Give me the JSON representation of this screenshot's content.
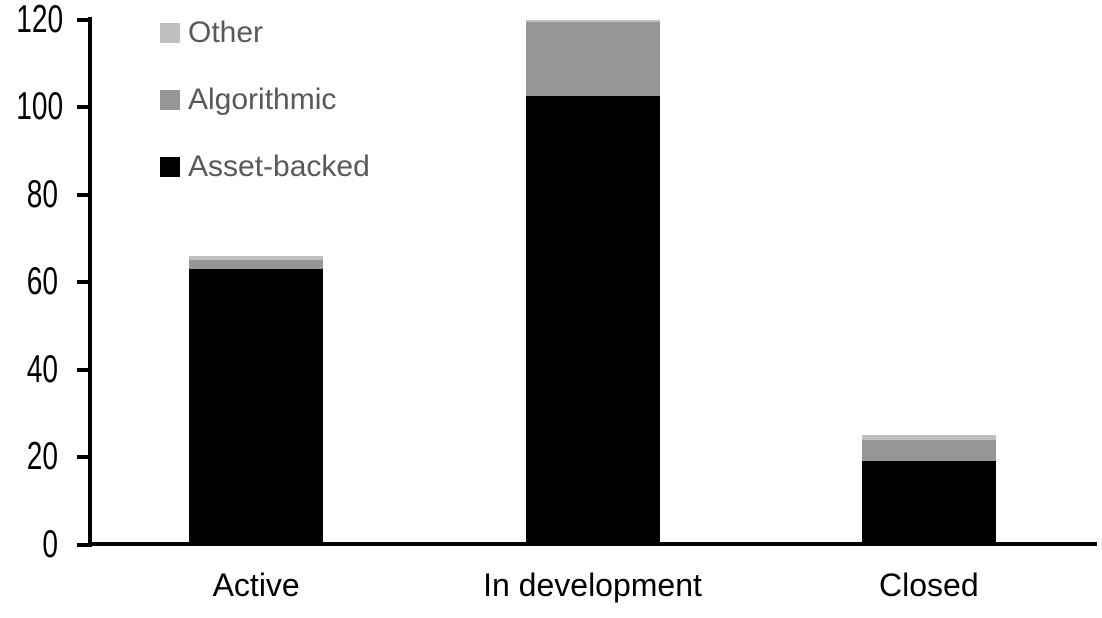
{
  "chart_data": {
    "type": "bar",
    "stacked": true,
    "title": "",
    "xlabel": "",
    "ylabel": "",
    "categories": [
      "Active",
      "In development",
      "Closed"
    ],
    "series": [
      {
        "name": "Asset-backed",
        "color": "#000000",
        "values": [
          63,
          102.5,
          19
        ]
      },
      {
        "name": "Algorithmic",
        "color": "#969696",
        "values": [
          2,
          17,
          5
        ]
      },
      {
        "name": "Other",
        "color": "#BFBFBF",
        "values": [
          1,
          0.5,
          1
        ]
      }
    ],
    "totals": [
      66,
      120,
      25
    ],
    "y_axis": {
      "min": 0,
      "max": 120,
      "tick_interval": 20,
      "ticks": [
        0,
        20,
        40,
        60,
        80,
        100,
        120
      ]
    },
    "grid": false,
    "legend": {
      "position": "top-left",
      "order": [
        "Other",
        "Algorithmic",
        "Asset-backed"
      ]
    }
  },
  "colors": {
    "background": "#FFFFFF",
    "axis": "#000000",
    "tick_label_text": "#000000",
    "category_label_text": "#000000",
    "legend_text": "#595959"
  }
}
